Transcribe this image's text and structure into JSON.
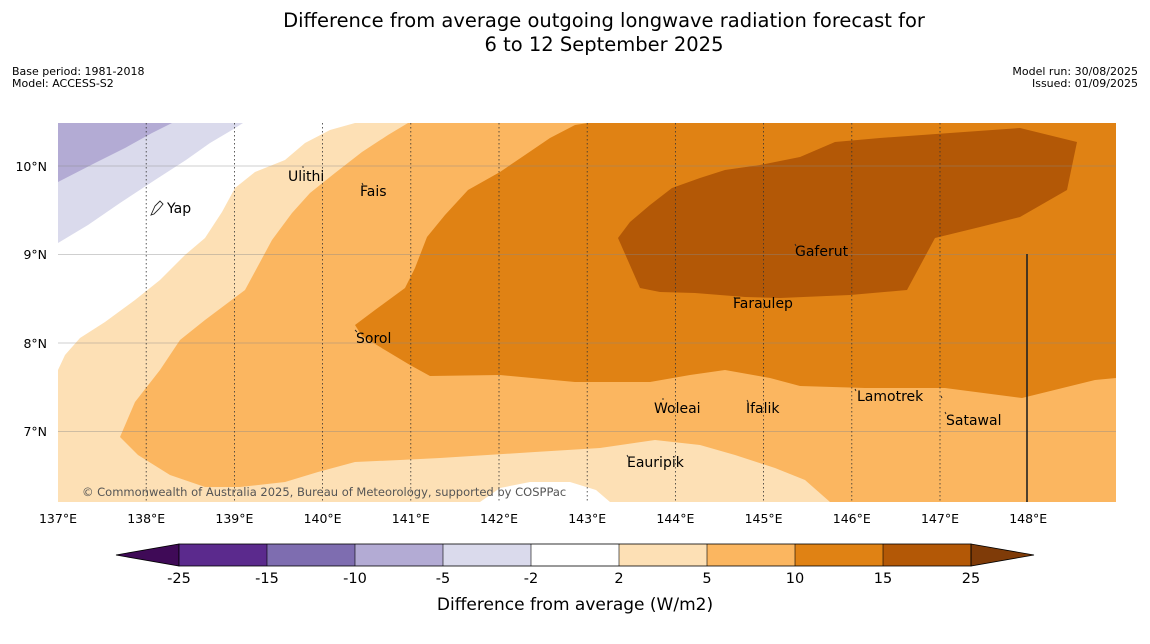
{
  "title": {
    "line1": "Difference from average outgoing longwave radiation forecast for",
    "line2": "6 to 12 September 2025"
  },
  "meta_left": {
    "base_period": "Base period: 1981-2018",
    "model": "Model: ACCESS-S2"
  },
  "meta_right": {
    "model_run": "Model run: 30/08/2025",
    "issued": "Issued: 01/09/2025"
  },
  "map": {
    "lon_ticks": [
      "137°E",
      "138°E",
      "139°E",
      "140°E",
      "141°E",
      "142°E",
      "143°E",
      "144°E",
      "145°E",
      "146°E",
      "147°E",
      "148°E"
    ],
    "lat_ticks": [
      "10°N",
      "9°N",
      "8°N",
      "7°N"
    ],
    "places": [
      {
        "name": "Yap"
      },
      {
        "name": "Ulithi"
      },
      {
        "name": "Fais"
      },
      {
        "name": "Gaferut"
      },
      {
        "name": "Faraulep"
      },
      {
        "name": "Sorol"
      },
      {
        "name": "Lamotrek"
      },
      {
        "name": "Woleai"
      },
      {
        "name": "Ifalik"
      },
      {
        "name": "Satawal"
      },
      {
        "name": "Eauripik"
      }
    ],
    "copyright": "© Commonwealth of Australia 2025, Bureau of Meteorology, supported by COSPPac",
    "colors": {
      "c_m25": "#3f0a57",
      "c_m15": "#5b2a8d",
      "c_m10": "#7e6db0",
      "c_m5": "#b3abd4",
      "c_m2": "#dadaec",
      "c_0": "#ffffff",
      "c_p2": "#fde0b5",
      "c_p5": "#fbb660",
      "c_p10": "#e08214",
      "c_p15": "#b35806",
      "c_p25": "#7f3b08"
    }
  },
  "colorbar": {
    "ticks": [
      "-25",
      "-15",
      "-10",
      "-5",
      "-2",
      "2",
      "5",
      "10",
      "15",
      "25"
    ],
    "label": "Difference from average (W/m2)"
  }
}
